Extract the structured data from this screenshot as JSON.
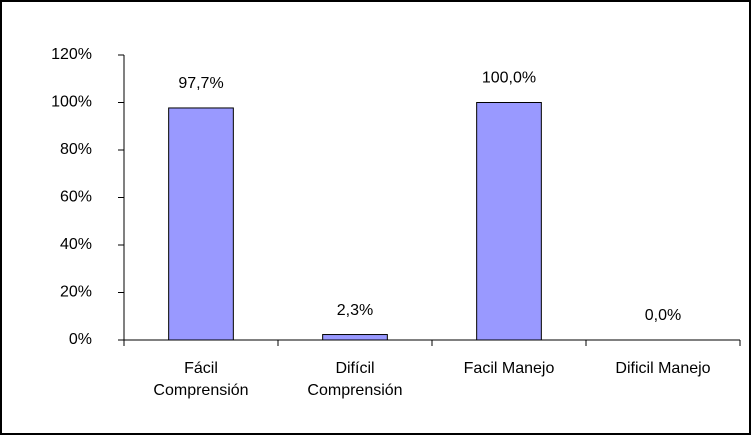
{
  "chart_data": {
    "type": "bar",
    "categories": [
      "Fácil Comprensión",
      "Difícil Comprensión",
      "Facil Manejo",
      "Dificil Manejo"
    ],
    "values": [
      97.7,
      2.3,
      100.0,
      0.0
    ],
    "value_labels": [
      "97,7%",
      "2,3%",
      "100,0%",
      "0,0%"
    ],
    "color": "#9999ff",
    "ylim": [
      0,
      120
    ],
    "yticks": [
      {
        "value": 0,
        "label": "0%"
      },
      {
        "value": 20,
        "label": "20%"
      },
      {
        "value": 40,
        "label": "40%"
      },
      {
        "value": 60,
        "label": "60%"
      },
      {
        "value": 80,
        "label": "80%"
      },
      {
        "value": 100,
        "label": "100%"
      },
      {
        "value": 120,
        "label": "120%"
      }
    ],
    "grid": false
  }
}
